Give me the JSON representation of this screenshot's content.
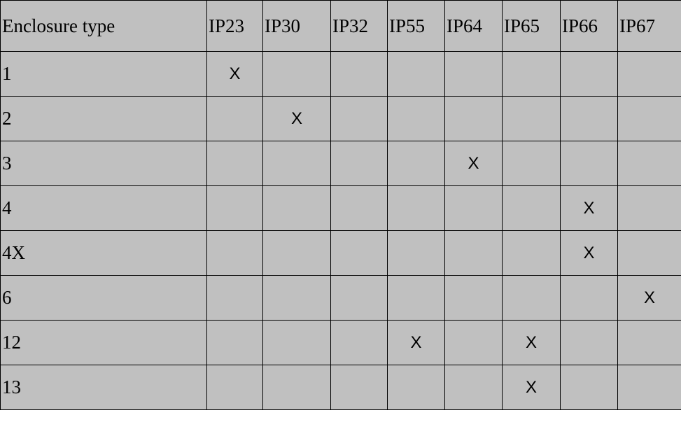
{
  "table": {
    "header": [
      "Enclosure type",
      "IP23",
      "IP30",
      "IP32",
      "IP55",
      "IP64",
      "IP65",
      "IP66",
      "IP67"
    ],
    "rows": [
      [
        "1",
        "X",
        null,
        null,
        null,
        null,
        null,
        null,
        null
      ],
      [
        "2",
        null,
        "X",
        null,
        null,
        null,
        null,
        null,
        null
      ],
      [
        "3",
        null,
        null,
        null,
        null,
        "X",
        null,
        null,
        null
      ],
      [
        "4",
        null,
        null,
        null,
        null,
        null,
        null,
        "X",
        null
      ],
      [
        "4X",
        null,
        null,
        null,
        null,
        null,
        null,
        "X",
        null
      ],
      [
        "6",
        null,
        null,
        null,
        null,
        null,
        null,
        null,
        "X"
      ],
      [
        "12",
        null,
        null,
        null,
        "X",
        null,
        "X",
        null,
        null
      ],
      [
        "13",
        null,
        null,
        null,
        null,
        null,
        "X",
        null,
        null
      ]
    ]
  }
}
